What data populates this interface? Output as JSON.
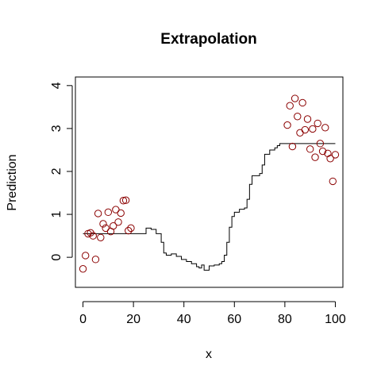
{
  "chart_data": {
    "type": "scatter",
    "title": "Extrapolation",
    "xlabel": "x",
    "ylabel": "Prediction",
    "xlim": [
      -3,
      103
    ],
    "ylim": [
      -0.7,
      4.2
    ],
    "xticks": [
      "0",
      "20",
      "40",
      "60",
      "80",
      "100"
    ],
    "yticks": [
      "0",
      "1",
      "2",
      "3",
      "4"
    ],
    "grid": false,
    "points_color": "#8b0000",
    "line_color": "#000000",
    "points": {
      "x": [
        0,
        1,
        2,
        3,
        4,
        5,
        6,
        7,
        8,
        9,
        10,
        11,
        12,
        13,
        14,
        15,
        16,
        17,
        18,
        19,
        81,
        82,
        83,
        84,
        85,
        86,
        87,
        88,
        89,
        90,
        91,
        92,
        93,
        94,
        95,
        96,
        97,
        98,
        99,
        100
      ],
      "y": [
        -0.27,
        0.04,
        0.55,
        0.57,
        0.5,
        -0.05,
        1.02,
        0.46,
        0.78,
        0.68,
        1.05,
        0.6,
        0.73,
        1.11,
        0.82,
        1.03,
        1.32,
        1.33,
        0.62,
        0.68,
        3.08,
        3.53,
        2.58,
        3.7,
        3.28,
        2.9,
        3.6,
        2.97,
        3.22,
        2.52,
        2.99,
        2.33,
        3.12,
        2.65,
        2.47,
        3.02,
        2.42,
        2.3,
        1.77,
        2.39
      ]
    },
    "step_line": {
      "x": [
        0,
        24,
        25,
        27,
        29,
        31,
        32,
        33,
        35,
        37,
        39,
        41,
        43,
        45,
        46,
        47,
        48,
        50,
        52,
        54,
        55,
        56,
        57,
        58,
        59,
        60,
        62,
        64,
        65,
        66,
        67,
        70,
        71,
        72,
        74,
        76,
        77,
        78,
        80,
        82,
        90,
        100
      ],
      "y": [
        0.55,
        0.55,
        0.68,
        0.65,
        0.55,
        0.35,
        0.1,
        0.05,
        0.08,
        0.02,
        -0.05,
        -0.1,
        -0.15,
        -0.22,
        -0.25,
        -0.18,
        -0.3,
        -0.2,
        -0.18,
        -0.15,
        -0.1,
        0.05,
        0.35,
        0.7,
        0.95,
        1.05,
        1.12,
        1.15,
        1.35,
        1.7,
        1.9,
        1.95,
        2.15,
        2.4,
        2.5,
        2.55,
        2.6,
        2.65,
        2.65,
        2.65,
        2.65,
        2.65
      ]
    }
  }
}
